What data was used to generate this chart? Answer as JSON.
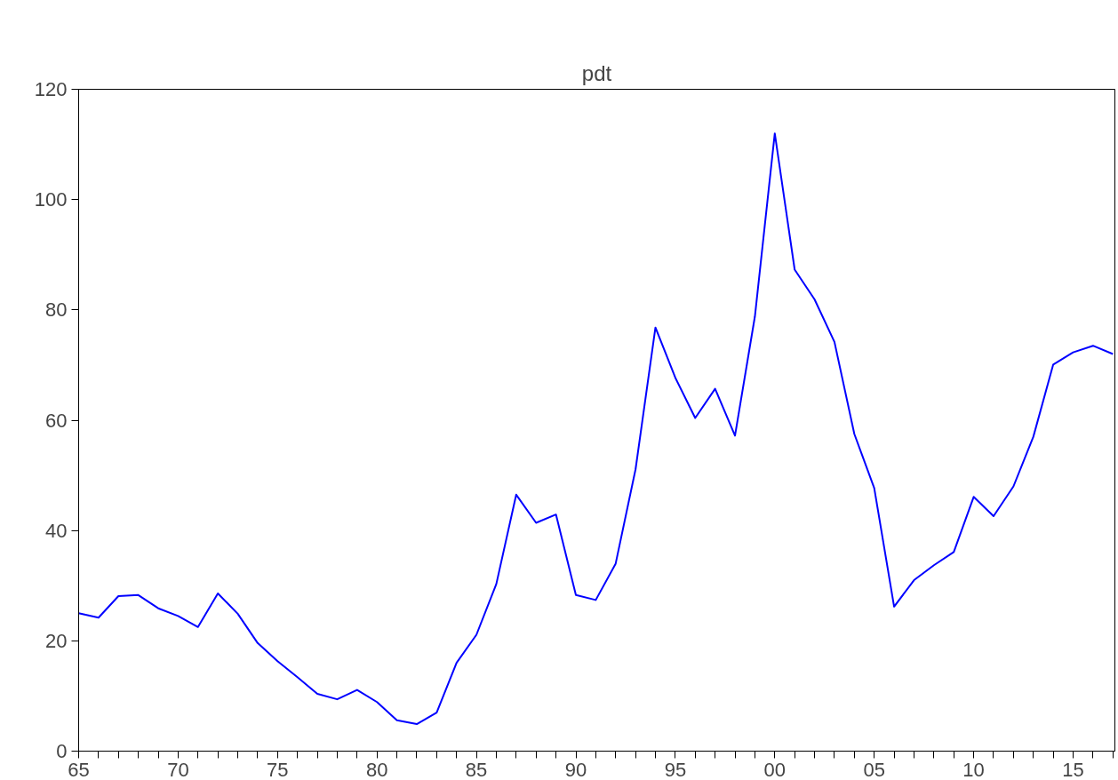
{
  "chart_data": {
    "type": "line",
    "title": "pdt",
    "x": [
      1965,
      1966,
      1967,
      1968,
      1969,
      1970,
      1971,
      1972,
      1973,
      1974,
      1975,
      1976,
      1977,
      1978,
      1979,
      1980,
      1981,
      1982,
      1983,
      1984,
      1985,
      1986,
      1987,
      1988,
      1989,
      1990,
      1991,
      1992,
      1993,
      1994,
      1995,
      1996,
      1997,
      1998,
      1999,
      2000,
      2001,
      2002,
      2003,
      2004,
      2005,
      2006,
      2007,
      2008,
      2009,
      2010,
      2011,
      2012,
      2013,
      2014,
      2015,
      2016,
      2017
    ],
    "series": [
      {
        "color": "#0000ff",
        "values": [
          25.0,
          24.2,
          28.1,
          28.3,
          25.9,
          24.5,
          22.5,
          28.6,
          24.9,
          19.6,
          16.3,
          13.4,
          10.4,
          9.4,
          11.1,
          8.9,
          5.6,
          4.9,
          7.0,
          16.0,
          21.1,
          30.3,
          46.5,
          41.4,
          42.9,
          28.3,
          27.4,
          34.0,
          51.1,
          76.8,
          67.7,
          60.4,
          65.7,
          57.2,
          78.8,
          112.0,
          87.3,
          81.9,
          74.2,
          57.5,
          47.7,
          26.2,
          31.0,
          33.7,
          36.1,
          46.1,
          42.6,
          48.0,
          57.0,
          70.1,
          72.3,
          73.5,
          72.0
        ]
      }
    ],
    "xlim": [
      1965,
      2017.1
    ],
    "ylim": [
      0,
      120
    ],
    "yticks": [
      0,
      20,
      40,
      60,
      80,
      100,
      120
    ],
    "xticks": [
      {
        "value": 1965,
        "label": "65"
      },
      {
        "value": 1966,
        "label": null
      },
      {
        "value": 1967,
        "label": null
      },
      {
        "value": 1968,
        "label": null
      },
      {
        "value": 1969,
        "label": null
      },
      {
        "value": 1970,
        "label": "70"
      },
      {
        "value": 1971,
        "label": null
      },
      {
        "value": 1972,
        "label": null
      },
      {
        "value": 1973,
        "label": null
      },
      {
        "value": 1974,
        "label": null
      },
      {
        "value": 1975,
        "label": "75"
      },
      {
        "value": 1976,
        "label": null
      },
      {
        "value": 1977,
        "label": null
      },
      {
        "value": 1978,
        "label": null
      },
      {
        "value": 1979,
        "label": null
      },
      {
        "value": 1980,
        "label": "80"
      },
      {
        "value": 1981,
        "label": null
      },
      {
        "value": 1982,
        "label": null
      },
      {
        "value": 1983,
        "label": null
      },
      {
        "value": 1984,
        "label": null
      },
      {
        "value": 1985,
        "label": "85"
      },
      {
        "value": 1986,
        "label": null
      },
      {
        "value": 1987,
        "label": null
      },
      {
        "value": 1988,
        "label": null
      },
      {
        "value": 1989,
        "label": null
      },
      {
        "value": 1990,
        "label": "90"
      },
      {
        "value": 1991,
        "label": null
      },
      {
        "value": 1992,
        "label": null
      },
      {
        "value": 1993,
        "label": null
      },
      {
        "value": 1994,
        "label": null
      },
      {
        "value": 1995,
        "label": "95"
      },
      {
        "value": 1996,
        "label": null
      },
      {
        "value": 1997,
        "label": null
      },
      {
        "value": 1998,
        "label": null
      },
      {
        "value": 1999,
        "label": null
      },
      {
        "value": 2000,
        "label": "00"
      },
      {
        "value": 2001,
        "label": null
      },
      {
        "value": 2002,
        "label": null
      },
      {
        "value": 2003,
        "label": null
      },
      {
        "value": 2004,
        "label": null
      },
      {
        "value": 2005,
        "label": "05"
      },
      {
        "value": 2006,
        "label": null
      },
      {
        "value": 2007,
        "label": null
      },
      {
        "value": 2008,
        "label": null
      },
      {
        "value": 2009,
        "label": null
      },
      {
        "value": 2010,
        "label": "10"
      },
      {
        "value": 2011,
        "label": null
      },
      {
        "value": 2012,
        "label": null
      },
      {
        "value": 2013,
        "label": null
      },
      {
        "value": 2014,
        "label": null
      },
      {
        "value": 2015,
        "label": "15"
      },
      {
        "value": 2016,
        "label": null
      },
      {
        "value": 2017,
        "label": null
      }
    ],
    "grid": false,
    "line_style": "solid"
  }
}
